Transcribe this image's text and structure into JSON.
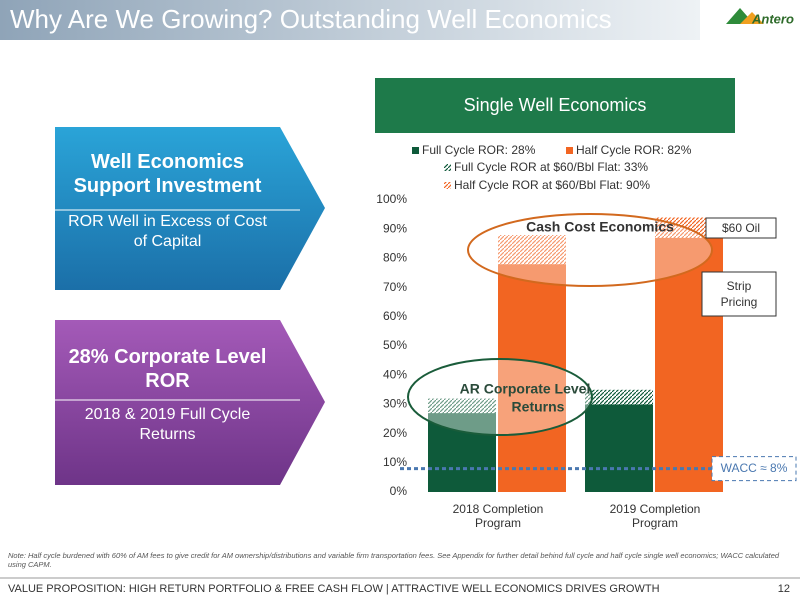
{
  "header": {
    "title": "Why Are We Growing? Outstanding Well Economics",
    "logo": "Antero"
  },
  "panels": [
    {
      "title": "Well Economics Support Investment",
      "text": "ROR Well in Excess of Cost of Capital"
    },
    {
      "title": "28% Corporate Level ROR",
      "text": "2018 & 2019 Full Cycle Returns"
    }
  ],
  "chart_data": {
    "type": "bar",
    "title": "Single Well Economics",
    "categories": [
      "2018 Completion Program",
      "2019 Completion Program"
    ],
    "series": [
      {
        "name": "Full Cycle ROR: 28%",
        "color": "#0e5a3a",
        "values": [
          27,
          30
        ]
      },
      {
        "name": "Half Cycle ROR: 82%",
        "color": "#f26522",
        "values": [
          78,
          87
        ]
      },
      {
        "name": "Full Cycle ROR at $60/Bbl Flat: 33%",
        "color": "#0e5a3a",
        "hatched": true,
        "values": [
          32,
          35
        ]
      },
      {
        "name": "Half Cycle ROR at $60/Bbl Flat: 90%",
        "color": "#f26522",
        "hatched": true,
        "values": [
          88,
          94
        ]
      }
    ],
    "ylim": [
      0,
      100
    ],
    "yticks": [
      {
        "value": 0,
        "label": "0%"
      },
      {
        "value": 10,
        "label": "10%"
      },
      {
        "value": 20,
        "label": "20%"
      },
      {
        "value": 30,
        "label": "30%"
      },
      {
        "value": 40,
        "label": "40%"
      },
      {
        "value": 50,
        "label": "50%"
      },
      {
        "value": 60,
        "label": "60%"
      },
      {
        "value": 70,
        "label": "70%"
      },
      {
        "value": 80,
        "label": "80%"
      },
      {
        "value": 90,
        "label": "90%"
      },
      {
        "value": 100,
        "label": "100%"
      }
    ],
    "wacc": {
      "value": 8,
      "label": "WACC ≈ 8%"
    },
    "annotations": [
      "Cash Cost Economics",
      "AR Corporate Level Returns",
      "$60 Oil",
      "Strip Pricing"
    ]
  },
  "note": "Note: Half cycle burdened with 60% of AM fees to give credit for AM ownership/distributions and variable firm transportation fees.  See Appendix for further detail behind full cycle and half cycle single well economics; WACC calculated using CAPM.",
  "footer": {
    "text": "VALUE PROPOSITION: HIGH RETURN PORTFOLIO & FREE CASH FLOW | ATTRACTIVE WELL ECONOMICS DRIVES GROWTH",
    "page": "12"
  }
}
